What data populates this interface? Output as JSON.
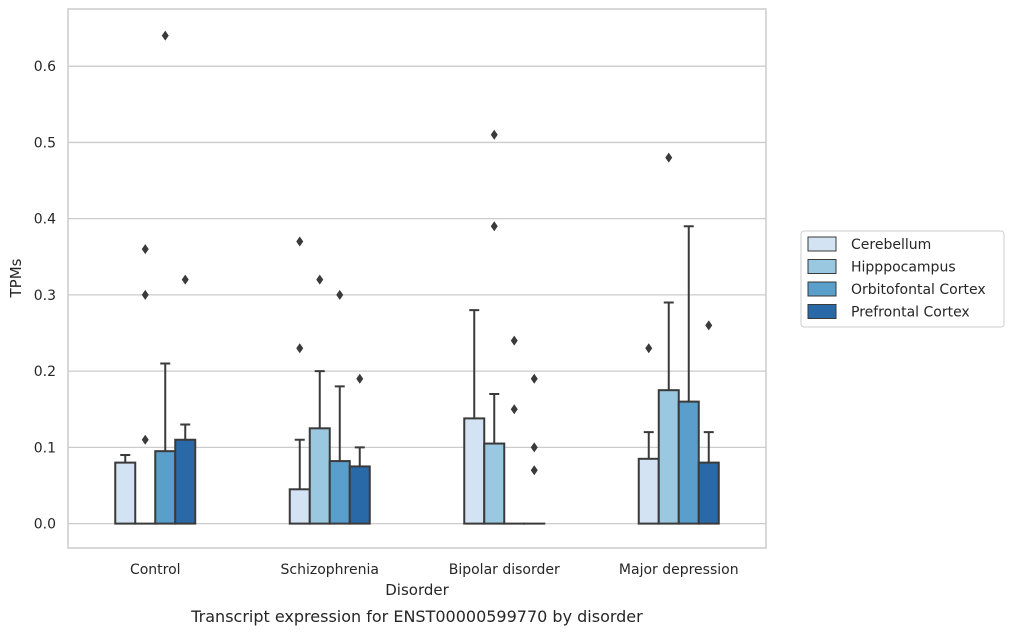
{
  "chart_data": {
    "type": "bar",
    "title": "",
    "caption": "Transcript expression for ENST00000599770 by disorder",
    "xlabel": "Disorder",
    "ylabel": "TPMs",
    "ylim": [
      -0.032,
      0.675
    ],
    "yticks": [
      0.0,
      0.1,
      0.2,
      0.3,
      0.4,
      0.5,
      0.6
    ],
    "ytick_labels": [
      "0.0",
      "0.1",
      "0.2",
      "0.3",
      "0.4",
      "0.5",
      "0.6"
    ],
    "grid": "horizontal",
    "legend_position": "right",
    "categories": [
      "Control",
      "Schizophrenia",
      "Bipolar disorder",
      "Major depression"
    ],
    "series": [
      {
        "name": "Cerebellum",
        "color": "#d3e3f3",
        "values": [
          0.08,
          0.045,
          0.138,
          0.085
        ],
        "error_upper": [
          0.09,
          0.11,
          0.28,
          0.12
        ],
        "outliers": [
          [],
          [
            0.37,
            0.23
          ],
          [],
          [
            0.23
          ]
        ]
      },
      {
        "name": "Hipppocampus",
        "color": "#9ac8e0",
        "values": [
          0.0,
          0.125,
          0.105,
          0.175
        ],
        "error_upper": [
          null,
          0.2,
          0.17,
          0.29
        ],
        "outliers": [
          [
            0.36,
            0.3,
            0.11
          ],
          [
            0.32
          ],
          [
            0.51,
            0.39
          ],
          [
            0.48
          ]
        ]
      },
      {
        "name": "Orbitofontal Cortex",
        "color": "#5a9fcc",
        "values": [
          0.095,
          0.082,
          0.0,
          0.16
        ],
        "error_upper": [
          0.21,
          0.18,
          null,
          0.39
        ],
        "outliers": [
          [
            0.64
          ],
          [
            0.3
          ],
          [
            0.24,
            0.15
          ],
          []
        ]
      },
      {
        "name": "Prefrontal Cortex",
        "color": "#2a69a8",
        "values": [
          0.11,
          0.075,
          0.0,
          0.08
        ],
        "error_upper": [
          0.13,
          0.1,
          null,
          0.12
        ],
        "outliers": [
          [
            0.32
          ],
          [
            0.19
          ],
          [
            0.19,
            0.1,
            0.07
          ],
          [
            0.26
          ]
        ]
      }
    ]
  }
}
